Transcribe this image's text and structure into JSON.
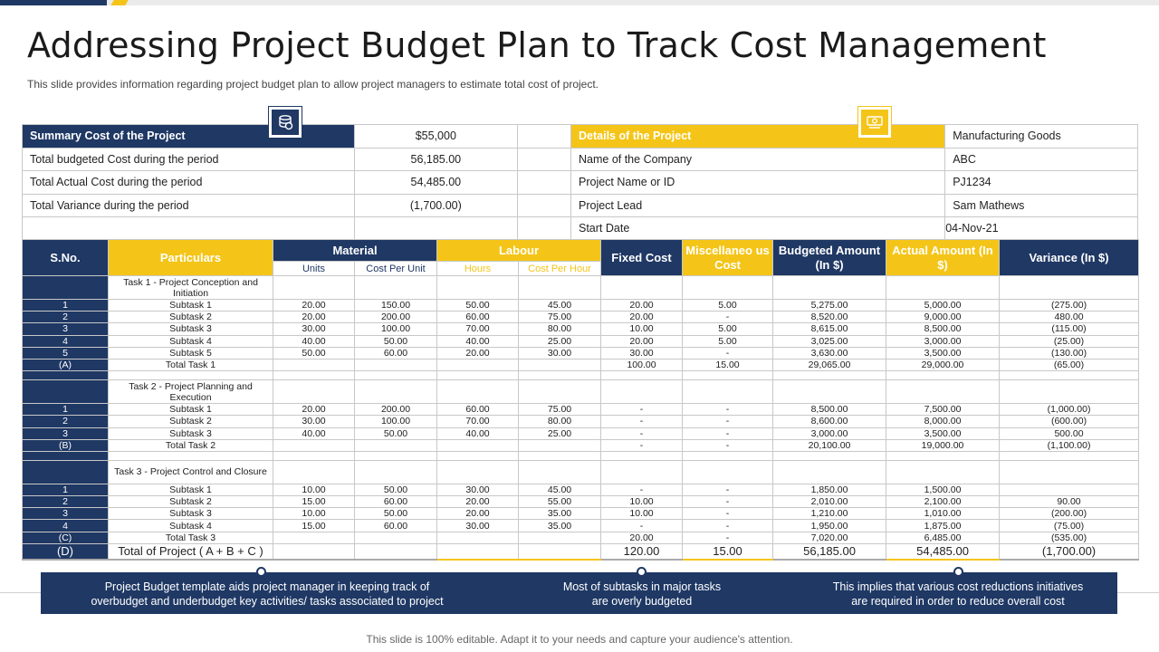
{
  "title": "Addressing Project Budget Plan to Track Cost Management",
  "subtitle": "This slide provides  information  regarding  project budget plan to allow  project managers  to estimate total cost of project.",
  "summary": {
    "header": "Summary Cost of the Project",
    "header_value": "$55,000",
    "rows": [
      {
        "label": "Total budgeted Cost during the period",
        "value": "56,185.00"
      },
      {
        "label": "Total Actual Cost during the period",
        "value": "54,485.00"
      },
      {
        "label": "Total Variance during the period",
        "value": "(1,700.00)"
      }
    ],
    "icon": "coins-icon"
  },
  "details": {
    "header": "Details of the Project",
    "header_value": "Manufacturing Goods",
    "rows": [
      {
        "label": "Name of the Company",
        "value": "ABC"
      },
      {
        "label": "Project Name or ID",
        "value": "PJ1234"
      },
      {
        "label": "Project Lead",
        "value": "Sam Mathews"
      },
      {
        "label": "Start Date",
        "value": "04-Nov-21"
      }
    ],
    "icon": "money-icon"
  },
  "table": {
    "headers": {
      "sno": "S.No.",
      "particulars": "Particulars",
      "material": "Material",
      "units": "Units",
      "cost_per_unit": "Cost Per Unit",
      "labour": "Labour",
      "hours": "Hours",
      "cost_per_hour": "Cost Per Hour",
      "fixed_cost": "Fixed Cost",
      "misc": "Miscellaneo us Cost",
      "budgeted": "Budgeted Amount (In $)",
      "actual": "Actual Amount (In $)",
      "variance": "Variance (In $)"
    },
    "task1": {
      "title": "Task 1 - Project Conception and Initiation",
      "rows": [
        [
          "1",
          "Subtask 1",
          "20.00",
          "150.00",
          "50.00",
          "45.00",
          "20.00",
          "5.00",
          "5,275.00",
          "5,000.00",
          "(275.00)"
        ],
        [
          "2",
          "Subtask 2",
          "20.00",
          "200.00",
          "60.00",
          "75.00",
          "20.00",
          "-",
          "8,520.00",
          "9,000.00",
          "480.00"
        ],
        [
          "3",
          "Subtask 3",
          "30.00",
          "100.00",
          "70.00",
          "80.00",
          "10.00",
          "5.00",
          "8,615.00",
          "8,500.00",
          "(115.00)"
        ],
        [
          "4",
          "Subtask 4",
          "40.00",
          "50.00",
          "40.00",
          "25.00",
          "20.00",
          "5.00",
          "3,025.00",
          "3,000.00",
          "(25.00)"
        ],
        [
          "5",
          "Subtask 5",
          "50.00",
          "60.00",
          "20.00",
          "30.00",
          "30.00",
          "-",
          "3,630.00",
          "3,500.00",
          "(130.00)"
        ],
        [
          "(A)",
          "Total Task 1",
          "",
          "",
          "",
          "",
          "100.00",
          "15.00",
          "29,065.00",
          "29,000.00",
          "(65.00)"
        ]
      ]
    },
    "task2": {
      "title": "Task 2 - Project Planning and Execution",
      "rows": [
        [
          "1",
          "Subtask 1",
          "20.00",
          "200.00",
          "60.00",
          "75.00",
          "-",
          "-",
          "8,500.00",
          "7,500.00",
          "(1,000.00)"
        ],
        [
          "2",
          "Subtask 2",
          "30.00",
          "100.00",
          "70.00",
          "80.00",
          "-",
          "-",
          "8,600.00",
          "8,000.00",
          "(600.00)"
        ],
        [
          "3",
          "Subtask 3",
          "40.00",
          "50.00",
          "40.00",
          "25.00",
          "-",
          "-",
          "3,000.00",
          "3,500.00",
          "500.00"
        ],
        [
          "(B)",
          "Total Task 2",
          "",
          "",
          "",
          "",
          "-",
          "-",
          "20,100.00",
          "19,000.00",
          "(1,100.00)"
        ]
      ]
    },
    "task3": {
      "title": "Task 3 - Project Control and Closure",
      "rows": [
        [
          "1",
          "Subtask 1",
          "10.00",
          "50.00",
          "30.00",
          "45.00",
          "-",
          "-",
          "1,850.00",
          "1,500.00",
          ""
        ],
        [
          "2",
          "Subtask 2",
          "15.00",
          "60.00",
          "20.00",
          "55.00",
          "10.00",
          "-",
          "2,010.00",
          "2,100.00",
          "90.00"
        ],
        [
          "3",
          "Subtask 3",
          "10.00",
          "50.00",
          "20.00",
          "35.00",
          "10.00",
          "-",
          "1,210.00",
          "1,010.00",
          "(200.00)"
        ],
        [
          "4",
          "Subtask 4",
          "15.00",
          "60.00",
          "30.00",
          "35.00",
          "-",
          "-",
          "1,950.00",
          "1,875.00",
          "(75.00)"
        ],
        [
          "(C)",
          "Total Task 3",
          "",
          "",
          "",
          "",
          "20.00",
          "-",
          "7,020.00",
          "6,485.00",
          "(535.00)"
        ]
      ]
    },
    "total": [
      "(D)",
      "Total of Project ( A + B + C )",
      "",
      "",
      "",
      "",
      "120.00",
      "15.00",
      "56,185.00",
      "54,485.00",
      "(1,700.00)"
    ]
  },
  "banner": {
    "items": [
      "Project Budget template aids project manager  in keeping track of\noverbudget  and underbudget  key activities/ tasks associated to project",
      "Most of subtasks in major tasks\nare overly budgeted",
      "This implies that various  cost reductions initiatives\nare required  in order to reduce overall  cost"
    ]
  },
  "footer": "This slide is 100% editable. Adapt it to your needs and capture your audience's attention.",
  "colors": {
    "navy": "#1f3864",
    "yellow": "#f4c518"
  }
}
